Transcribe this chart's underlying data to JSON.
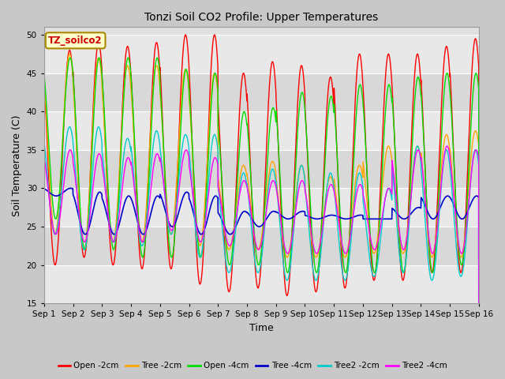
{
  "title": "Tonzi Soil CO2 Profile: Upper Temperatures",
  "xlabel": "Time",
  "ylabel": "Soil Temperature (C)",
  "ylim": [
    15,
    51
  ],
  "xlim": [
    0,
    15
  ],
  "yticks": [
    15,
    20,
    25,
    30,
    35,
    40,
    45,
    50
  ],
  "xtick_labels": [
    "Sep 1",
    "Sep 2",
    "Sep 3",
    "Sep 4",
    "Sep 5",
    "Sep 6",
    "Sep 7",
    "Sep 8",
    "Sep 9",
    "Sep 10",
    "Sep 11",
    "Sep 12",
    "Sep 13",
    "Sep 14",
    "Sep 15",
    "Sep 16"
  ],
  "dataset_label": "TZ_soilco2",
  "series": [
    {
      "label": "Open -2cm",
      "color": "#ff0000"
    },
    {
      "label": "Tree -2cm",
      "color": "#ffa500"
    },
    {
      "label": "Open -4cm",
      "color": "#00dd00"
    },
    {
      "label": "Tree -4cm",
      "color": "#0000cc"
    },
    {
      "label": "Tree2 -2cm",
      "color": "#00cccc"
    },
    {
      "label": "Tree2 -4cm",
      "color": "#ff00ff"
    }
  ],
  "fig_bg_color": "#c8c8c8",
  "plot_bg_color": "#e0e0e0",
  "band_color1": "#e8e8e8",
  "band_color2": "#d8d8d8",
  "n_days": 15,
  "mins": {
    "open2": [
      20.0,
      21.0,
      20.0,
      19.5,
      19.5,
      17.5,
      16.5,
      17.0,
      16.0,
      16.5,
      17.0,
      18.0,
      18.0,
      19.0,
      19.0
    ],
    "tree2": [
      24.0,
      22.0,
      23.0,
      23.0,
      24.0,
      22.5,
      22.0,
      22.0,
      21.0,
      21.0,
      21.0,
      21.5,
      21.5,
      21.0,
      21.0
    ],
    "open4": [
      26.0,
      22.0,
      22.0,
      21.0,
      21.0,
      21.0,
      20.0,
      20.0,
      19.0,
      19.0,
      19.0,
      19.0,
      19.0,
      19.0,
      20.0
    ],
    "tree4": [
      29.0,
      24.0,
      24.0,
      24.0,
      25.0,
      24.0,
      24.0,
      25.0,
      26.0,
      26.0,
      26.0,
      26.0,
      26.0,
      26.0,
      26.0
    ],
    "tree22": [
      24.0,
      22.0,
      23.0,
      22.5,
      24.0,
      21.0,
      19.0,
      19.0,
      18.0,
      18.0,
      18.0,
      18.5,
      19.0,
      18.0,
      18.5
    ],
    "tree24": [
      24.0,
      23.0,
      23.0,
      23.0,
      24.5,
      23.0,
      22.5,
      22.0,
      21.5,
      21.5,
      21.5,
      22.0,
      22.0,
      21.5,
      21.5
    ]
  },
  "maxs": {
    "open2": [
      48.0,
      49.0,
      48.5,
      49.0,
      50.0,
      50.0,
      45.0,
      46.5,
      46.0,
      44.5,
      47.5,
      47.5,
      47.5,
      48.5,
      49.5
    ],
    "tree2": [
      47.5,
      47.0,
      46.0,
      46.0,
      45.5,
      45.0,
      33.0,
      33.5,
      33.0,
      31.5,
      33.0,
      35.5,
      35.5,
      37.0,
      37.5
    ],
    "open4": [
      47.0,
      47.0,
      47.0,
      47.0,
      45.5,
      45.0,
      40.0,
      40.5,
      42.5,
      42.0,
      43.5,
      43.5,
      44.5,
      45.0,
      45.0
    ],
    "tree4": [
      30.0,
      29.5,
      29.0,
      29.0,
      29.5,
      29.0,
      27.0,
      27.0,
      27.0,
      26.5,
      26.5,
      26.0,
      27.5,
      29.0,
      29.0
    ],
    "tree22": [
      38.0,
      38.0,
      36.5,
      37.5,
      37.0,
      37.0,
      32.0,
      32.5,
      33.0,
      32.0,
      32.0,
      30.0,
      35.5,
      35.0,
      35.0
    ],
    "tree24": [
      35.0,
      34.5,
      34.0,
      34.5,
      35.0,
      34.0,
      31.0,
      31.0,
      31.0,
      30.5,
      30.5,
      30.0,
      35.0,
      35.5,
      35.0
    ]
  }
}
